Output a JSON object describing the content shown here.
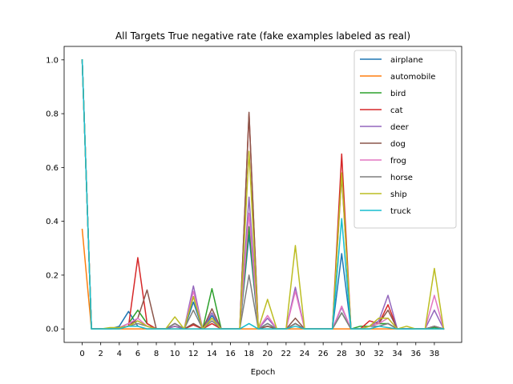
{
  "chart_data": {
    "type": "line",
    "title": "All Targets True negative rate (fake examples labeled as real)",
    "xlabel": "Epoch",
    "ylabel": "",
    "xlim": [
      -1.95,
      40.95
    ],
    "ylim": [
      -0.05,
      1.05
    ],
    "xticks": [
      0,
      2,
      4,
      6,
      8,
      10,
      12,
      14,
      16,
      18,
      20,
      22,
      24,
      26,
      28,
      30,
      32,
      34,
      36,
      38
    ],
    "yticks": [
      0.0,
      0.2,
      0.4,
      0.6,
      0.8,
      1.0
    ],
    "ytick_labels": [
      "0.0",
      "0.2",
      "0.4",
      "0.6",
      "0.8",
      "1.0"
    ],
    "grid": false,
    "legend_position": "upper-right",
    "x": [
      0,
      1,
      2,
      3,
      4,
      5,
      6,
      7,
      8,
      9,
      10,
      11,
      12,
      13,
      14,
      15,
      16,
      17,
      18,
      19,
      20,
      21,
      22,
      23,
      24,
      25,
      26,
      27,
      28,
      29,
      30,
      31,
      32,
      33,
      34,
      35,
      36,
      37,
      38,
      39
    ],
    "series": [
      {
        "name": "airplane",
        "color": "#1f77b4",
        "values": [
          1.0,
          0.0,
          0.0,
          0.0,
          0.01,
          0.065,
          0.01,
          0.0,
          0.0,
          0.0,
          0.02,
          0.0,
          0.1,
          0.0,
          0.05,
          0.0,
          0.0,
          0.0,
          0.35,
          0.0,
          0.02,
          0.0,
          0.0,
          0.02,
          0.0,
          0.0,
          0.0,
          0.0,
          0.28,
          0.0,
          0.0,
          0.0,
          0.01,
          0.02,
          0.0,
          0.0,
          0.0,
          0.0,
          0.01,
          0.0
        ]
      },
      {
        "name": "automobile",
        "color": "#ff7f0e",
        "values": [
          0.37,
          0.0,
          0.0,
          0.0,
          0.0,
          0.0,
          0.0,
          0.0,
          0.0,
          0.0,
          0.0,
          0.0,
          0.0,
          0.0,
          0.0,
          0.0,
          0.0,
          0.0,
          0.0,
          0.0,
          0.0,
          0.0,
          0.0,
          0.0,
          0.0,
          0.0,
          0.0,
          0.0,
          0.0,
          0.0,
          0.0,
          0.0,
          0.0,
          0.0,
          0.0,
          0.0,
          0.0,
          0.0,
          0.0,
          0.0
        ]
      },
      {
        "name": "bird",
        "color": "#2ca02c",
        "values": [
          1.0,
          0.0,
          0.0,
          0.0,
          0.005,
          0.02,
          0.07,
          0.02,
          0.0,
          0.0,
          0.01,
          0.0,
          0.12,
          0.0,
          0.15,
          0.0,
          0.0,
          0.0,
          0.38,
          0.0,
          0.01,
          0.0,
          0.0,
          0.02,
          0.0,
          0.0,
          0.0,
          0.0,
          0.06,
          0.0,
          0.01,
          0.01,
          0.02,
          0.02,
          0.0,
          0.0,
          0.0,
          0.0,
          0.005,
          0.0
        ]
      },
      {
        "name": "cat",
        "color": "#d62728",
        "values": [
          1.0,
          0.0,
          0.0,
          0.0,
          0.005,
          0.01,
          0.265,
          0.02,
          0.0,
          0.0,
          0.01,
          0.0,
          0.015,
          0.0,
          0.02,
          0.0,
          0.0,
          0.0,
          0.8,
          0.0,
          0.01,
          0.0,
          0.0,
          0.02,
          0.0,
          0.0,
          0.0,
          0.0,
          0.65,
          0.0,
          0.0,
          0.03,
          0.02,
          0.09,
          0.0,
          0.0,
          0.0,
          0.0,
          0.01,
          0.0
        ]
      },
      {
        "name": "deer",
        "color": "#9467bd",
        "values": [
          1.0,
          0.0,
          0.0,
          0.0,
          0.005,
          0.02,
          0.03,
          0.01,
          0.0,
          0.0,
          0.01,
          0.0,
          0.16,
          0.0,
          0.06,
          0.0,
          0.0,
          0.0,
          0.49,
          0.0,
          0.04,
          0.0,
          0.0,
          0.155,
          0.0,
          0.0,
          0.0,
          0.0,
          0.08,
          0.0,
          0.0,
          0.01,
          0.03,
          0.125,
          0.0,
          0.0,
          0.0,
          0.0,
          0.07,
          0.0
        ]
      },
      {
        "name": "dog",
        "color": "#8c564b",
        "values": [
          1.0,
          0.0,
          0.0,
          0.0,
          0.005,
          0.01,
          0.04,
          0.145,
          0.0,
          0.0,
          0.02,
          0.0,
          0.02,
          0.0,
          0.075,
          0.0,
          0.0,
          0.0,
          0.805,
          0.0,
          0.01,
          0.0,
          0.0,
          0.04,
          0.0,
          0.0,
          0.0,
          0.0,
          0.57,
          0.0,
          0.0,
          0.01,
          0.02,
          0.07,
          0.0,
          0.0,
          0.0,
          0.0,
          0.01,
          0.0
        ]
      },
      {
        "name": "frog",
        "color": "#e377c2",
        "values": [
          1.0,
          0.0,
          0.0,
          0.0,
          0.005,
          0.02,
          0.04,
          0.01,
          0.0,
          0.0,
          0.02,
          0.0,
          0.14,
          0.0,
          0.04,
          0.0,
          0.0,
          0.0,
          0.43,
          0.0,
          0.05,
          0.0,
          0.0,
          0.14,
          0.0,
          0.0,
          0.0,
          0.0,
          0.085,
          0.0,
          0.0,
          0.01,
          0.02,
          0.04,
          0.0,
          0.0,
          0.0,
          0.0,
          0.125,
          0.0
        ]
      },
      {
        "name": "horse",
        "color": "#7f7f7f",
        "values": [
          1.0,
          0.0,
          0.0,
          0.0,
          0.005,
          0.01,
          0.02,
          0.01,
          0.0,
          0.0,
          0.02,
          0.0,
          0.07,
          0.0,
          0.03,
          0.0,
          0.0,
          0.0,
          0.2,
          0.0,
          0.02,
          0.0,
          0.0,
          0.02,
          0.0,
          0.0,
          0.0,
          0.0,
          0.06,
          0.0,
          0.0,
          0.01,
          0.01,
          0.02,
          0.0,
          0.0,
          0.0,
          0.0,
          0.01,
          0.0
        ]
      },
      {
        "name": "ship",
        "color": "#bcbd22",
        "values": [
          1.0,
          0.0,
          0.0,
          0.005,
          0.005,
          0.01,
          0.03,
          0.01,
          0.0,
          0.0,
          0.045,
          0.0,
          0.12,
          0.0,
          0.04,
          0.0,
          0.0,
          0.0,
          0.66,
          0.0,
          0.11,
          0.0,
          0.0,
          0.31,
          0.0,
          0.0,
          0.0,
          0.0,
          0.58,
          0.0,
          0.0,
          0.01,
          0.04,
          0.04,
          0.0,
          0.01,
          0.0,
          0.0,
          0.225,
          0.0
        ]
      },
      {
        "name": "truck",
        "color": "#17becf",
        "values": [
          1.0,
          0.0,
          0.0,
          0.0,
          0.0,
          0.01,
          0.01,
          0.0,
          0.0,
          0.0,
          0.0,
          0.0,
          0.0,
          0.0,
          0.0,
          0.0,
          0.0,
          0.0,
          0.02,
          0.0,
          0.0,
          0.0,
          0.0,
          0.01,
          0.0,
          0.0,
          0.0,
          0.0,
          0.41,
          0.0,
          0.0,
          0.0,
          0.01,
          0.005,
          0.0,
          0.0,
          0.0,
          0.0,
          0.0,
          0.0
        ]
      }
    ]
  }
}
